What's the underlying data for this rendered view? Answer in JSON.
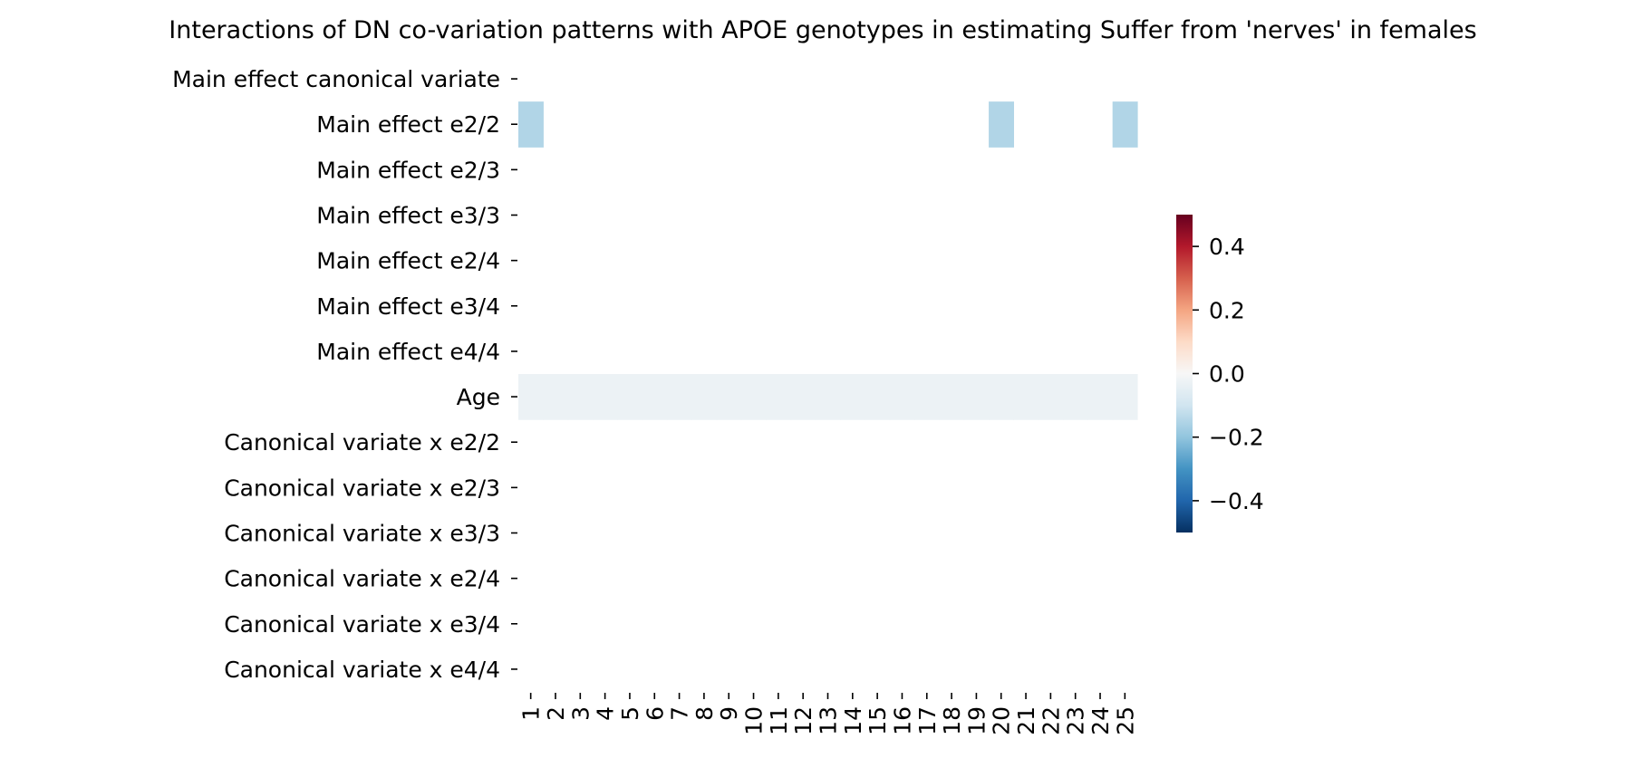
{
  "chart_data": {
    "type": "heatmap",
    "title": "Interactions of DN co-variation patterns with APOE genotypes in estimating Suffer from 'nerves' in females",
    "xlabel": "",
    "ylabel": "",
    "x_categories": [
      "1",
      "2",
      "3",
      "4",
      "5",
      "6",
      "7",
      "8",
      "9",
      "10",
      "11",
      "12",
      "13",
      "14",
      "15",
      "16",
      "17",
      "18",
      "19",
      "20",
      "21",
      "22",
      "23",
      "24",
      "25"
    ],
    "y_categories": [
      "Main effect canonical variate",
      "Main effect e2/2",
      "Main effect e2/3",
      "Main effect e3/3",
      "Main effect e2/4",
      "Main effect e3/4",
      "Main effect e4/4",
      "Age",
      "Canonical variate x e2/2",
      "Canonical variate x e2/3",
      "Canonical variate x e3/3",
      "Canonical variate x e2/4",
      "Canonical variate x e3/4",
      "Canonical variate x e4/4"
    ],
    "values": [
      [
        null,
        null,
        null,
        null,
        null,
        null,
        null,
        null,
        null,
        null,
        null,
        null,
        null,
        null,
        null,
        null,
        null,
        null,
        null,
        null,
        null,
        null,
        null,
        null,
        null
      ],
      [
        -0.15,
        null,
        null,
        null,
        null,
        null,
        null,
        null,
        null,
        null,
        null,
        null,
        null,
        null,
        null,
        null,
        null,
        null,
        null,
        -0.15,
        null,
        null,
        null,
        null,
        -0.15
      ],
      [
        null,
        null,
        null,
        null,
        null,
        null,
        null,
        null,
        null,
        null,
        null,
        null,
        null,
        null,
        null,
        null,
        null,
        null,
        null,
        null,
        null,
        null,
        null,
        null,
        null
      ],
      [
        null,
        null,
        null,
        null,
        null,
        null,
        null,
        null,
        null,
        null,
        null,
        null,
        null,
        null,
        null,
        null,
        null,
        null,
        null,
        null,
        null,
        null,
        null,
        null,
        null
      ],
      [
        null,
        null,
        null,
        null,
        null,
        null,
        null,
        null,
        null,
        null,
        null,
        null,
        null,
        null,
        null,
        null,
        null,
        null,
        null,
        null,
        null,
        null,
        null,
        null,
        null
      ],
      [
        null,
        null,
        null,
        null,
        null,
        null,
        null,
        null,
        null,
        null,
        null,
        null,
        null,
        null,
        null,
        null,
        null,
        null,
        null,
        null,
        null,
        null,
        null,
        null,
        null
      ],
      [
        null,
        null,
        null,
        null,
        null,
        null,
        null,
        null,
        null,
        null,
        null,
        null,
        null,
        null,
        null,
        null,
        null,
        null,
        null,
        null,
        null,
        null,
        null,
        null,
        null
      ],
      [
        -0.03,
        -0.03,
        -0.03,
        -0.03,
        -0.03,
        -0.03,
        -0.03,
        -0.03,
        -0.03,
        -0.03,
        -0.03,
        -0.03,
        -0.03,
        -0.03,
        -0.03,
        -0.03,
        -0.03,
        -0.03,
        -0.03,
        -0.03,
        -0.03,
        -0.03,
        -0.03,
        -0.03,
        -0.03
      ],
      [
        null,
        null,
        null,
        null,
        null,
        null,
        null,
        null,
        null,
        null,
        null,
        null,
        null,
        null,
        null,
        null,
        null,
        null,
        null,
        null,
        null,
        null,
        null,
        null,
        null
      ],
      [
        null,
        null,
        null,
        null,
        null,
        null,
        null,
        null,
        null,
        null,
        null,
        null,
        null,
        null,
        null,
        null,
        null,
        null,
        null,
        null,
        null,
        null,
        null,
        null,
        null
      ],
      [
        null,
        null,
        null,
        null,
        null,
        null,
        null,
        null,
        null,
        null,
        null,
        null,
        null,
        null,
        null,
        null,
        null,
        null,
        null,
        null,
        null,
        null,
        null,
        null,
        null
      ],
      [
        null,
        null,
        null,
        null,
        null,
        null,
        null,
        null,
        null,
        null,
        null,
        null,
        null,
        null,
        null,
        null,
        null,
        null,
        null,
        null,
        null,
        null,
        null,
        null,
        null
      ],
      [
        null,
        null,
        null,
        null,
        null,
        null,
        null,
        null,
        null,
        null,
        null,
        null,
        null,
        null,
        null,
        null,
        null,
        null,
        null,
        null,
        null,
        null,
        null,
        null,
        null
      ],
      [
        null,
        null,
        null,
        null,
        null,
        null,
        null,
        null,
        null,
        null,
        null,
        null,
        null,
        null,
        null,
        null,
        null,
        null,
        null,
        null,
        null,
        null,
        null,
        null,
        null
      ]
    ],
    "colorbar": {
      "colormap": "RdBu_r",
      "vmin": -0.5,
      "vmax": 0.5,
      "ticks": [
        0.4,
        0.2,
        0.0,
        -0.2,
        -0.4
      ],
      "tick_labels": [
        "0.4",
        "0.2",
        "0.0",
        "−0.2",
        "−0.4"
      ]
    },
    "grid": false
  }
}
